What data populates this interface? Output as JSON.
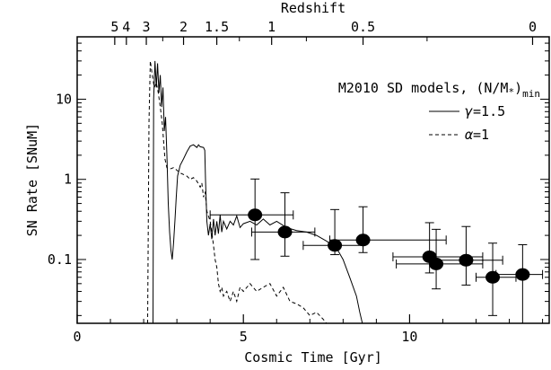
{
  "chart_data": {
    "type": "scatter",
    "xlabel": "Cosmic Time [Gyr]",
    "ylabel": "SN Rate [SNuM]",
    "top_axis_label": "Redshift",
    "xlim": [
      0,
      14.2
    ],
    "ylim": [
      0.016,
      60
    ],
    "yscale": "log",
    "x_ticks": [
      {
        "value": 0,
        "label": "0"
      },
      {
        "value": 5,
        "label": "5"
      },
      {
        "value": 10,
        "label": "10"
      }
    ],
    "y_ticks": [
      {
        "value": 0.1,
        "label": "0.1"
      },
      {
        "value": 1,
        "label": "1"
      },
      {
        "value": 10,
        "label": "10"
      }
    ],
    "top_ticks": [
      {
        "time": 1.13,
        "label": "5"
      },
      {
        "time": 1.48,
        "label": "4"
      },
      {
        "time": 2.08,
        "label": "3"
      },
      {
        "time": 3.2,
        "label": "2"
      },
      {
        "time": 4.2,
        "label": "1.5"
      },
      {
        "time": 5.85,
        "label": "1"
      },
      {
        "time": 8.6,
        "label": "0.5"
      },
      {
        "time": 13.7,
        "label": "0"
      }
    ],
    "legend": {
      "title": "M2010 SD models, (N/M",
      "title_star": "*",
      "title_close": ")",
      "title_sub": "min",
      "placement": "top-right",
      "entries": [
        {
          "label_greek": "γ",
          "label_rest": "=1.5",
          "style": "solid"
        },
        {
          "label_greek": "α",
          "label_rest": "=1",
          "style": "dashed"
        }
      ]
    },
    "series": [
      {
        "style": "solid",
        "points": [
          [
            2.28,
            0.016
          ],
          [
            2.3,
            10
          ],
          [
            2.34,
            30
          ],
          [
            2.38,
            14
          ],
          [
            2.42,
            28
          ],
          [
            2.46,
            12
          ],
          [
            2.5,
            20
          ],
          [
            2.54,
            8
          ],
          [
            2.58,
            14
          ],
          [
            2.62,
            4
          ],
          [
            2.66,
            6
          ],
          [
            2.7,
            2
          ],
          [
            2.74,
            0.5
          ],
          [
            2.78,
            0.22
          ],
          [
            2.82,
            0.13
          ],
          [
            2.86,
            0.1
          ],
          [
            2.9,
            0.16
          ],
          [
            2.94,
            0.3
          ],
          [
            2.98,
            0.6
          ],
          [
            3.02,
            1.1
          ],
          [
            3.1,
            1.5
          ],
          [
            3.2,
            1.8
          ],
          [
            3.3,
            2.2
          ],
          [
            3.4,
            2.6
          ],
          [
            3.5,
            2.7
          ],
          [
            3.6,
            2.5
          ],
          [
            3.65,
            2.7
          ],
          [
            3.7,
            2.55
          ],
          [
            3.8,
            2.5
          ],
          [
            3.84,
            2.3
          ],
          [
            3.86,
            1.0
          ],
          [
            3.9,
            0.3
          ],
          [
            3.95,
            0.2
          ],
          [
            4.0,
            0.28
          ],
          [
            4.05,
            0.18
          ],
          [
            4.1,
            0.32
          ],
          [
            4.15,
            0.2
          ],
          [
            4.2,
            0.3
          ],
          [
            4.25,
            0.21
          ],
          [
            4.3,
            0.36
          ],
          [
            4.35,
            0.22
          ],
          [
            4.4,
            0.3
          ],
          [
            4.5,
            0.24
          ],
          [
            4.6,
            0.3
          ],
          [
            4.7,
            0.27
          ],
          [
            4.8,
            0.35
          ],
          [
            4.9,
            0.25
          ],
          [
            5.0,
            0.28
          ],
          [
            5.2,
            0.3
          ],
          [
            5.4,
            0.27
          ],
          [
            5.6,
            0.32
          ],
          [
            5.8,
            0.27
          ],
          [
            6.0,
            0.3
          ],
          [
            6.3,
            0.25
          ],
          [
            6.6,
            0.23
          ],
          [
            6.9,
            0.22
          ],
          [
            7.2,
            0.2
          ],
          [
            7.5,
            0.17
          ],
          [
            7.8,
            0.14
          ],
          [
            8.0,
            0.1
          ],
          [
            8.2,
            0.06
          ],
          [
            8.4,
            0.035
          ],
          [
            8.5,
            0.022
          ],
          [
            8.58,
            0.016
          ]
        ]
      },
      {
        "style": "dashed",
        "points": [
          [
            2.12,
            0.016
          ],
          [
            2.16,
            5
          ],
          [
            2.2,
            30
          ],
          [
            2.26,
            20
          ],
          [
            2.32,
            14
          ],
          [
            2.38,
            16
          ],
          [
            2.44,
            12
          ],
          [
            2.5,
            8
          ],
          [
            2.56,
            5
          ],
          [
            2.6,
            3
          ],
          [
            2.64,
            1.8
          ],
          [
            2.7,
            1.4
          ],
          [
            2.8,
            1.35
          ],
          [
            2.9,
            1.4
          ],
          [
            3.0,
            1.3
          ],
          [
            3.1,
            1.2
          ],
          [
            3.2,
            1.15
          ],
          [
            3.3,
            1.1
          ],
          [
            3.4,
            1.0
          ],
          [
            3.5,
            1.05
          ],
          [
            3.6,
            0.95
          ],
          [
            3.7,
            0.8
          ],
          [
            3.75,
            0.9
          ],
          [
            3.8,
            0.6
          ],
          [
            3.85,
            0.7
          ],
          [
            3.9,
            0.4
          ],
          [
            4.0,
            0.3
          ],
          [
            4.05,
            0.22
          ],
          [
            4.1,
            0.15
          ],
          [
            4.15,
            0.1
          ],
          [
            4.2,
            0.08
          ],
          [
            4.25,
            0.05
          ],
          [
            4.3,
            0.04
          ],
          [
            4.35,
            0.045
          ],
          [
            4.4,
            0.035
          ],
          [
            4.5,
            0.04
          ],
          [
            4.6,
            0.03
          ],
          [
            4.7,
            0.04
          ],
          [
            4.8,
            0.03
          ],
          [
            4.9,
            0.045
          ],
          [
            5.0,
            0.04
          ],
          [
            5.2,
            0.05
          ],
          [
            5.4,
            0.04
          ],
          [
            5.6,
            0.045
          ],
          [
            5.8,
            0.05
          ],
          [
            6.0,
            0.035
          ],
          [
            6.2,
            0.045
          ],
          [
            6.4,
            0.03
          ],
          [
            6.6,
            0.028
          ],
          [
            6.8,
            0.025
          ],
          [
            7.0,
            0.02
          ],
          [
            7.2,
            0.022
          ],
          [
            7.4,
            0.018
          ],
          [
            7.5,
            0.016
          ]
        ]
      }
    ],
    "observations": [
      {
        "x": 5.35,
        "y": 0.36,
        "xerr": [
          1.35,
          1.15
        ],
        "yerr": [
          0.26,
          0.65
        ]
      },
      {
        "x": 6.25,
        "y": 0.22,
        "xerr": [
          1.0,
          0.9
        ],
        "yerr": [
          0.11,
          0.46
        ]
      },
      {
        "x": 7.75,
        "y": 0.15,
        "xerr": [
          0.95,
          0.85
        ],
        "yerr": [
          0.035,
          0.27
        ]
      },
      {
        "x": 8.6,
        "y": 0.175,
        "xerr": [
          1.0,
          2.5
        ],
        "yerr": [
          0.053,
          0.28
        ]
      },
      {
        "x": 10.6,
        "y": 0.108,
        "xerr": [
          1.1,
          1.6
        ],
        "yerr": [
          0.04,
          0.18
        ]
      },
      {
        "x": 10.8,
        "y": 0.088,
        "xerr": [
          1.2,
          1.4
        ],
        "yerr": [
          0.045,
          0.15
        ]
      },
      {
        "x": 11.7,
        "y": 0.098,
        "xerr": [
          0.9,
          1.1
        ],
        "yerr": [
          0.05,
          0.16
        ]
      },
      {
        "x": 12.5,
        "y": 0.06,
        "xerr": [
          0.5,
          0.7
        ],
        "yerr": [
          0.04,
          0.1
        ]
      },
      {
        "x": 13.4,
        "y": 0.065,
        "xerr": [
          0.8,
          0.6
        ],
        "yerr": [
          0.05,
          0.088
        ]
      }
    ]
  }
}
